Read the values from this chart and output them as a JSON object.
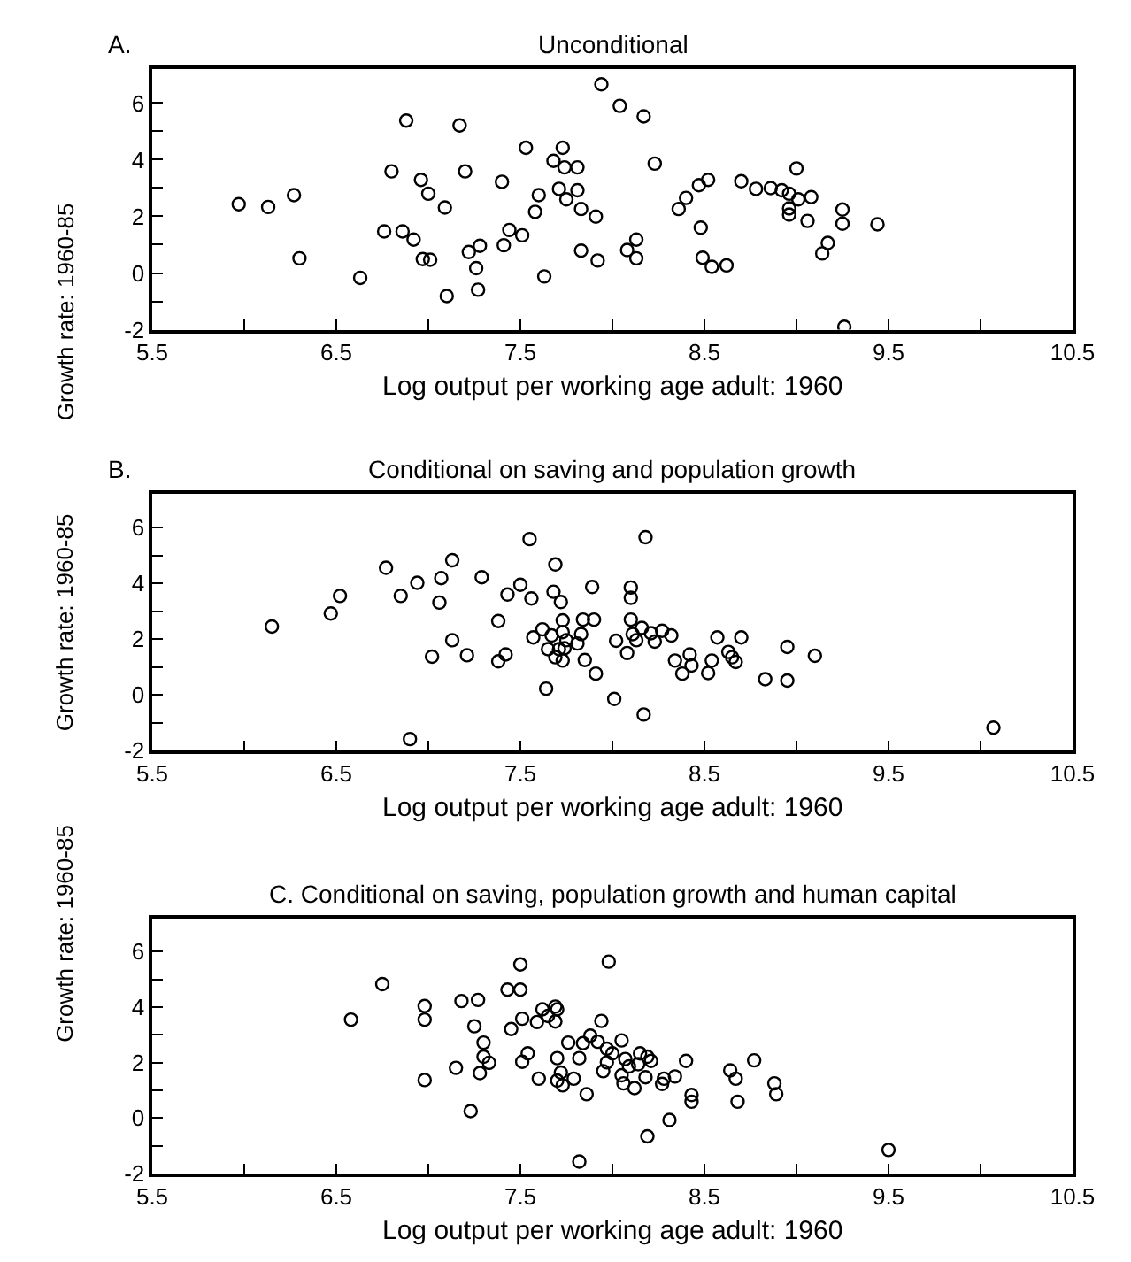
{
  "chart_data": [
    {
      "type": "scatter",
      "title": "Unconditional",
      "annotations": [
        "A."
      ],
      "xlabel": "Log output per working age adult: 1960",
      "ylabel": "Growth rate: 1960-85",
      "marker": "circle",
      "color": "#000000",
      "xlim": [
        5.5,
        10.5
      ],
      "xticks": [
        5.5,
        {
          "value": 6,
          "label": null
        },
        6.5,
        {
          "value": 7,
          "label": null
        },
        7.5,
        {
          "value": 8,
          "label": null
        },
        8.5,
        {
          "value": 9,
          "label": null
        },
        9.5,
        {
          "value": 10,
          "label": null
        },
        10.5
      ],
      "ylim": [
        -2,
        7.2
      ],
      "yticks": [
        -2,
        {
          "value": -1,
          "label": null
        },
        0,
        {
          "value": 1,
          "label": null
        },
        2,
        {
          "value": 3,
          "label": null
        },
        4,
        {
          "value": 5,
          "label": null
        },
        6
      ],
      "x": [
        5.97,
        6.13,
        6.27,
        6.3,
        6.63,
        6.76,
        6.8,
        6.86,
        6.88,
        6.92,
        6.96,
        6.97,
        7.0,
        7.01,
        7.09,
        7.1,
        7.17,
        7.2,
        7.22,
        7.26,
        7.27,
        7.28,
        7.4,
        7.41,
        7.44,
        7.51,
        7.53,
        7.58,
        7.6,
        7.63,
        7.68,
        7.71,
        7.73,
        7.74,
        7.75,
        7.81,
        7.81,
        7.83,
        7.83,
        7.91,
        7.92,
        7.94,
        8.04,
        8.08,
        8.13,
        8.13,
        8.17,
        8.23,
        8.36,
        8.4,
        8.47,
        8.48,
        8.49,
        8.52,
        8.54,
        8.62,
        8.7,
        8.78,
        8.86,
        8.92,
        8.96,
        8.96,
        8.96,
        9.0,
        9.01,
        9.06,
        9.08,
        9.14,
        9.17,
        9.25,
        9.25,
        9.26,
        9.44
      ],
      "values": [
        2.43,
        2.33,
        2.75,
        0.52,
        -0.17,
        1.47,
        3.59,
        1.47,
        5.38,
        1.18,
        3.29,
        0.49,
        2.8,
        0.47,
        2.31,
        -0.81,
        5.21,
        3.59,
        0.74,
        0.17,
        -0.59,
        0.96,
        3.22,
        0.98,
        1.52,
        1.33,
        4.42,
        2.16,
        2.75,
        -0.12,
        3.96,
        2.97,
        4.42,
        3.73,
        2.6,
        3.73,
        2.92,
        2.26,
        0.79,
        1.99,
        0.44,
        6.66,
        5.9,
        0.81,
        1.18,
        0.52,
        5.53,
        3.86,
        2.26,
        2.65,
        3.1,
        1.6,
        0.54,
        3.29,
        0.22,
        0.27,
        3.24,
        2.97,
        3.0,
        2.92,
        2.28,
        2.8,
        2.06,
        3.69,
        2.6,
        1.84,
        2.68,
        0.69,
        1.06,
        2.24,
        1.74,
        -1.9,
        1.72
      ]
    },
    {
      "type": "scatter",
      "title": "Conditional on saving and population growth",
      "annotations": [
        "B."
      ],
      "xlabel": "Log output per working age adult: 1960",
      "ylabel": "Growth rate: 1960-85",
      "marker": "circle",
      "color": "#000000",
      "xlim": [
        5.5,
        10.5
      ],
      "xticks": [
        5.5,
        {
          "value": 6,
          "label": null
        },
        6.5,
        {
          "value": 7,
          "label": null
        },
        7.5,
        {
          "value": 8,
          "label": null
        },
        8.5,
        {
          "value": 9,
          "label": null
        },
        9.5,
        {
          "value": 10,
          "label": null
        },
        10.5
      ],
      "ylim": [
        -2,
        7.2
      ],
      "yticks": [
        -2,
        {
          "value": -1,
          "label": null
        },
        0,
        {
          "value": 1,
          "label": null
        },
        2,
        {
          "value": 3,
          "label": null
        },
        4,
        {
          "value": 5,
          "label": null
        },
        6
      ],
      "x": [
        6.15,
        6.47,
        6.52,
        6.77,
        6.85,
        6.9,
        6.94,
        7.02,
        7.06,
        7.07,
        7.13,
        7.13,
        7.21,
        7.29,
        7.38,
        7.38,
        7.42,
        7.43,
        7.5,
        7.55,
        7.56,
        7.57,
        7.62,
        7.64,
        7.65,
        7.67,
        7.68,
        7.69,
        7.69,
        7.71,
        7.72,
        7.73,
        7.73,
        7.73,
        7.74,
        7.75,
        7.81,
        7.83,
        7.84,
        7.85,
        7.89,
        7.9,
        7.91,
        8.01,
        8.02,
        8.08,
        8.1,
        8.1,
        8.1,
        8.11,
        8.13,
        8.16,
        8.17,
        8.18,
        8.21,
        8.23,
        8.27,
        8.32,
        8.34,
        8.38,
        8.42,
        8.43,
        8.52,
        8.54,
        8.57,
        8.63,
        8.65,
        8.67,
        8.7,
        8.83,
        8.95,
        8.95,
        9.1,
        10.07
      ],
      "values": [
        2.45,
        2.92,
        3.55,
        4.56,
        3.55,
        -1.59,
        4.02,
        1.37,
        3.31,
        4.19,
        4.83,
        1.96,
        1.42,
        4.22,
        1.2,
        2.65,
        1.45,
        3.6,
        3.95,
        5.59,
        3.46,
        2.06,
        2.35,
        0.22,
        1.64,
        2.13,
        3.7,
        4.68,
        1.35,
        1.64,
        3.33,
        2.67,
        2.25,
        1.23,
        1.67,
        1.96,
        1.84,
        2.18,
        2.7,
        1.25,
        3.87,
        2.7,
        0.76,
        -0.15,
        1.94,
        1.5,
        3.85,
        3.48,
        2.7,
        2.18,
        1.96,
        2.4,
        -0.71,
        5.66,
        2.21,
        1.91,
        2.3,
        2.13,
        1.23,
        0.76,
        1.45,
        1.05,
        0.78,
        1.23,
        2.06,
        1.54,
        1.35,
        1.18,
        2.06,
        0.56,
        1.72,
        0.51,
        1.4,
        -1.18
      ]
    },
    {
      "type": "scatter",
      "title": "C. Conditional on saving, population growth and human capital",
      "xlabel": "Log output per working age adult: 1960",
      "ylabel": "Growth rate: 1960-85",
      "marker": "circle",
      "color": "#000000",
      "xlim": [
        5.5,
        10.5
      ],
      "xticks": [
        5.5,
        {
          "value": 6,
          "label": null
        },
        6.5,
        {
          "value": 7,
          "label": null
        },
        7.5,
        {
          "value": 8,
          "label": null
        },
        8.5,
        {
          "value": 9,
          "label": null
        },
        9.5,
        {
          "value": 10,
          "label": null
        },
        10.5
      ],
      "ylim": [
        -2,
        7.2
      ],
      "yticks": [
        -2,
        {
          "value": -1,
          "label": null
        },
        0,
        {
          "value": 1,
          "label": null
        },
        2,
        {
          "value": 3,
          "label": null
        },
        4,
        {
          "value": 5,
          "label": null
        },
        6
      ],
      "x": [
        6.58,
        6.75,
        6.98,
        6.98,
        6.98,
        7.15,
        7.18,
        7.23,
        7.25,
        7.27,
        7.28,
        7.3,
        7.3,
        7.33,
        7.43,
        7.45,
        7.5,
        7.5,
        7.51,
        7.51,
        7.54,
        7.6,
        7.59,
        7.62,
        7.65,
        7.69,
        7.69,
        7.7,
        7.7,
        7.7,
        7.72,
        7.73,
        7.76,
        7.79,
        7.82,
        7.82,
        7.84,
        7.86,
        7.88,
        7.92,
        7.94,
        7.95,
        7.97,
        7.97,
        7.98,
        8.0,
        8.05,
        8.05,
        8.06,
        8.07,
        8.09,
        8.12,
        8.14,
        8.15,
        8.18,
        8.19,
        8.19,
        8.21,
        8.27,
        8.28,
        8.31,
        8.34,
        8.4,
        8.43,
        8.43,
        8.64,
        8.67,
        8.68,
        8.77,
        8.88,
        8.89,
        9.5
      ],
      "values": [
        3.55,
        4.83,
        4.04,
        3.55,
        1.37,
        1.81,
        4.22,
        0.25,
        3.31,
        4.26,
        1.62,
        2.72,
        2.21,
        1.99,
        4.63,
        3.21,
        5.54,
        4.63,
        2.03,
        3.58,
        2.33,
        1.42,
        3.46,
        3.92,
        3.68,
        3.48,
        4.02,
        2.16,
        3.92,
        1.35,
        1.64,
        1.18,
        2.72,
        1.42,
        2.16,
        -1.57,
        2.7,
        0.86,
        2.97,
        2.75,
        3.5,
        1.69,
        2.01,
        2.5,
        5.64,
        2.33,
        2.8,
        1.54,
        1.25,
        2.13,
        1.86,
        1.08,
        1.94,
        2.33,
        1.47,
        -0.66,
        2.21,
        2.06,
        1.23,
        1.42,
        -0.07,
        1.5,
        2.06,
        0.59,
        0.83,
        1.72,
        1.42,
        0.59,
        2.08,
        1.25,
        0.86,
        -1.15
      ]
    }
  ]
}
